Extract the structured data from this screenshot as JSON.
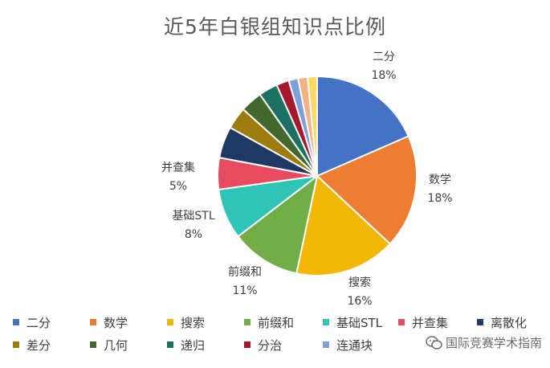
{
  "chart_data": {
    "type": "pie",
    "title": "近5年白银组知识点比例",
    "categories": [
      "二分",
      "数学",
      "搜索",
      "前缀和",
      "基础STL",
      "并查集",
      "离散化",
      "差分",
      "几何",
      "递归",
      "分治",
      "连通块",
      "",
      ""
    ],
    "values": [
      18,
      18,
      16,
      11,
      8,
      5,
      5,
      3.5,
      3.5,
      3,
      2,
      1.5,
      1.5,
      1.5
    ],
    "data_labels": [
      {
        "name": "二分",
        "percent": "18%"
      },
      {
        "name": "数学",
        "percent": "18%"
      },
      {
        "name": "搜索",
        "percent": "16%"
      },
      {
        "name": "前缀和",
        "percent": "11%"
      },
      {
        "name": "基础STL",
        "percent": "8%"
      },
      {
        "name": "并查集",
        "percent": "5%"
      }
    ],
    "colors": [
      "#4472C4",
      "#ED7D31",
      "#F2B705",
      "#70AD47",
      "#2EC4B6",
      "#E84A5F",
      "#203864",
      "#9E7B0F",
      "#43682B",
      "#1B7263",
      "#A5192E",
      "#7F9FDB",
      "#F4B183",
      "#FFD966"
    ],
    "legend_position": "bottom"
  },
  "legend": {
    "rows": [
      [
        "二分",
        "数学",
        "搜索",
        "前缀和",
        "基础STL",
        "并查集",
        "离散化"
      ],
      [
        "差分",
        "几何",
        "递归",
        "分治",
        "连通块"
      ]
    ]
  },
  "watermark": {
    "text": "国际竞赛学术指南",
    "icon": "wechat-icon"
  }
}
